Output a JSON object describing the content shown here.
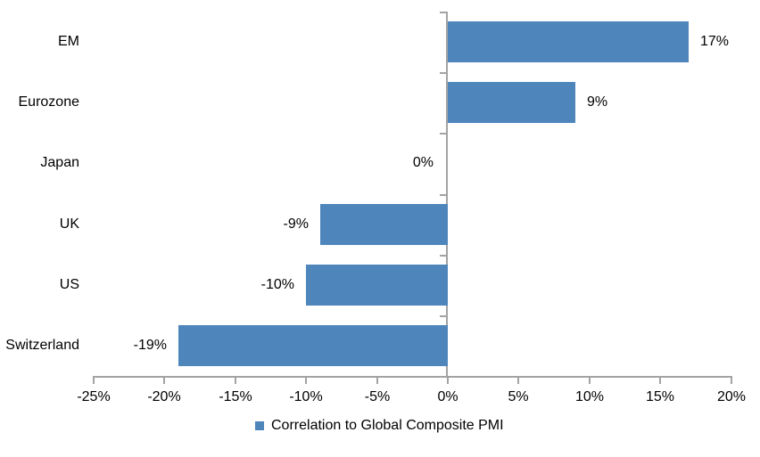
{
  "chart_data": {
    "type": "bar",
    "orientation": "horizontal",
    "title": "",
    "xlabel": "",
    "ylabel": "",
    "categories": [
      "EM",
      "Eurozone",
      "Japan",
      "UK",
      "US",
      "Switzerland"
    ],
    "values": [
      17,
      9,
      0,
      -9,
      -10,
      -19
    ],
    "value_labels": [
      "17%",
      "9%",
      "0%",
      "-9%",
      "-10%",
      "-19%"
    ],
    "series_name": "Correlation to Global Composite PMI",
    "xlim": [
      -25,
      20
    ],
    "xticks": [
      -25,
      -20,
      -15,
      -10,
      -5,
      0,
      5,
      10,
      15,
      20
    ],
    "xtick_labels": [
      "-25%",
      "-20%",
      "-15%",
      "-10%",
      "-5%",
      "0%",
      "5%",
      "10%",
      "15%",
      "20%"
    ],
    "grid": false,
    "legend_position": "bottom",
    "colors": {
      "bar": "#4E86BC",
      "axis": "#A3A3A3",
      "text": "#000000",
      "background": "#FFFFFF"
    }
  }
}
